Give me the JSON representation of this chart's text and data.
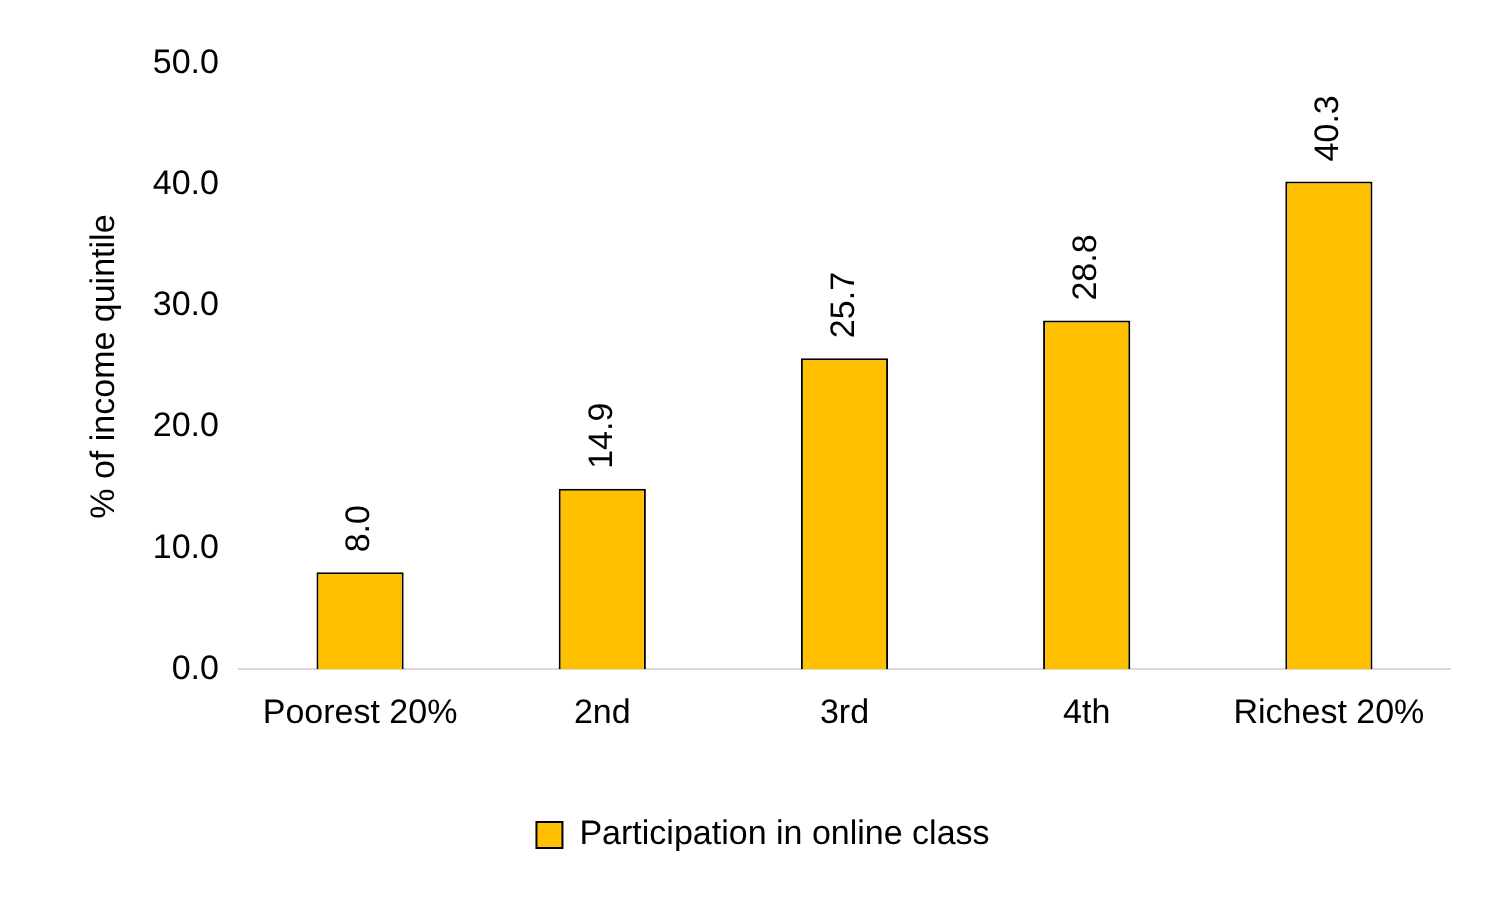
{
  "chart_data": {
    "type": "bar",
    "ylabel": "% of income quintile",
    "categories": [
      "Poorest 20%",
      "2nd",
      "3rd",
      "4th",
      "Richest 20%"
    ],
    "series": [
      {
        "name": "Participation in online class",
        "color": "#ffc000",
        "values": [
          8.0,
          14.9,
          25.7,
          28.8,
          40.3
        ]
      }
    ],
    "ylim": [
      0,
      50
    ],
    "yticks": [
      {
        "value": 0,
        "label": "0.0"
      },
      {
        "value": 10,
        "label": "10.0"
      },
      {
        "value": 20,
        "label": "20.0"
      },
      {
        "value": 30,
        "label": "30.0"
      },
      {
        "value": 40,
        "label": "40.0"
      },
      {
        "value": 50,
        "label": "50.0"
      }
    ],
    "value_labels": [
      "8.0",
      "14.9",
      "25.7",
      "28.8",
      "40.3"
    ],
    "legend": "bottom",
    "grid": false
  }
}
